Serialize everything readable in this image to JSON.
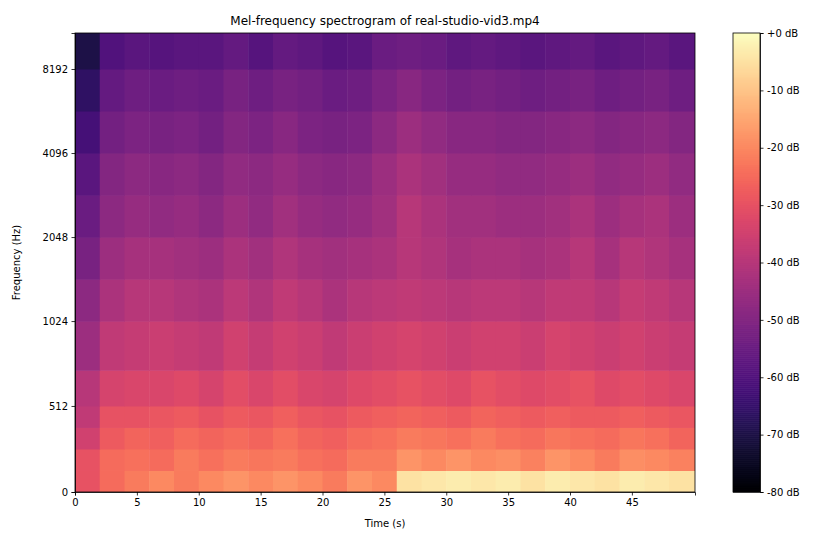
{
  "chart_data": {
    "type": "heatmap",
    "title": "Mel-frequency spectrogram of real-studio-vid3.mp4",
    "x_label": "Time (s)",
    "y_label": "Frequency (Hz)",
    "xlim": [
      0,
      50.1
    ],
    "xticks": [
      0,
      5,
      10,
      15,
      20,
      25,
      30,
      35,
      40,
      45
    ],
    "ylim": [
      0,
      11025
    ],
    "yticks": [
      0,
      512,
      1024,
      2048,
      4096,
      8192
    ],
    "x_bins": [
      0,
      2,
      4,
      6,
      8,
      10,
      12,
      14,
      16,
      18,
      20,
      22,
      24,
      26,
      28,
      30,
      32,
      34,
      36,
      38,
      40,
      42,
      44,
      46,
      48,
      50.1
    ],
    "y_bins": [
      0,
      128,
      256,
      384,
      512,
      724,
      1024,
      1448,
      2048,
      2896,
      4096,
      5793,
      8192,
      11025
    ],
    "cells": [
      [
        -30,
        -25,
        -22,
        -20,
        -22,
        -20,
        -18,
        -20,
        -18,
        -20,
        -22,
        -18,
        -20,
        -5,
        -4,
        -3,
        -4,
        -3,
        -5,
        -3,
        -4,
        -5,
        -3,
        -4,
        -5
      ],
      [
        -30,
        -25,
        -24,
        -25,
        -22,
        -24,
        -22,
        -23,
        -22,
        -24,
        -25,
        -22,
        -22,
        -18,
        -20,
        -18,
        -20,
        -19,
        -21,
        -18,
        -20,
        -22,
        -19,
        -20,
        -21
      ],
      [
        -35,
        -28,
        -26,
        -27,
        -25,
        -26,
        -25,
        -26,
        -24,
        -26,
        -27,
        -25,
        -24,
        -22,
        -23,
        -24,
        -22,
        -24,
        -25,
        -23,
        -24,
        -25,
        -23,
        -24,
        -26
      ],
      [
        -38,
        -30,
        -30,
        -29,
        -28,
        -30,
        -28,
        -29,
        -27,
        -29,
        -30,
        -28,
        -27,
        -26,
        -27,
        -28,
        -26,
        -27,
        -28,
        -27,
        -28,
        -28,
        -27,
        -28,
        -29
      ],
      [
        -40,
        -34,
        -33,
        -33,
        -32,
        -34,
        -31,
        -33,
        -31,
        -33,
        -34,
        -32,
        -31,
        -30,
        -31,
        -32,
        -30,
        -31,
        -32,
        -31,
        -30,
        -32,
        -31,
        -32,
        -33
      ],
      [
        -45,
        -38,
        -37,
        -36,
        -37,
        -38,
        -35,
        -37,
        -35,
        -36,
        -38,
        -36,
        -35,
        -34,
        -35,
        -36,
        -35,
        -35,
        -36,
        -34,
        -35,
        -36,
        -35,
        -36,
        -37
      ],
      [
        -48,
        -42,
        -40,
        -40,
        -41,
        -42,
        -39,
        -41,
        -38,
        -40,
        -42,
        -40,
        -39,
        -38,
        -39,
        -40,
        -39,
        -39,
        -40,
        -38,
        -38,
        -40,
        -37,
        -38,
        -40
      ],
      [
        -52,
        -45,
        -43,
        -43,
        -44,
        -45,
        -42,
        -44,
        -41,
        -43,
        -44,
        -43,
        -42,
        -40,
        -41,
        -43,
        -42,
        -42,
        -43,
        -42,
        -40,
        -43,
        -40,
        -41,
        -43
      ],
      [
        -55,
        -48,
        -46,
        -47,
        -46,
        -48,
        -45,
        -47,
        -44,
        -46,
        -47,
        -46,
        -44,
        -40,
        -42,
        -44,
        -44,
        -45,
        -45,
        -44,
        -42,
        -45,
        -43,
        -42,
        -45
      ],
      [
        -58,
        -50,
        -48,
        -49,
        -48,
        -50,
        -47,
        -48,
        -46,
        -48,
        -49,
        -48,
        -45,
        -42,
        -44,
        -46,
        -46,
        -47,
        -47,
        -46,
        -45,
        -47,
        -46,
        -45,
        -47
      ],
      [
        -62,
        -53,
        -51,
        -52,
        -51,
        -53,
        -50,
        -51,
        -49,
        -51,
        -52,
        -51,
        -48,
        -45,
        -47,
        -49,
        -49,
        -50,
        -50,
        -49,
        -48,
        -50,
        -49,
        -48,
        -50
      ],
      [
        -66,
        -56,
        -54,
        -55,
        -54,
        -55,
        -52,
        -54,
        -52,
        -53,
        -55,
        -54,
        -51,
        -49,
        -51,
        -53,
        -52,
        -53,
        -54,
        -53,
        -52,
        -54,
        -53,
        -52,
        -54
      ],
      [
        -70,
        -60,
        -58,
        -59,
        -58,
        -58,
        -56,
        -59,
        -56,
        -57,
        -59,
        -58,
        -55,
        -54,
        -55,
        -57,
        -56,
        -57,
        -58,
        -57,
        -56,
        -58,
        -57,
        -56,
        -58
      ]
    ],
    "clim": [
      -80,
      0
    ],
    "cticks": [
      {
        "value": 0,
        "label": "+0 dB"
      },
      {
        "value": -10,
        "label": "-10 dB"
      },
      {
        "value": -20,
        "label": "-20 dB"
      },
      {
        "value": -30,
        "label": "-30 dB"
      },
      {
        "value": -40,
        "label": "-40 dB"
      },
      {
        "value": -50,
        "label": "-50 dB"
      },
      {
        "value": -60,
        "label": "-60 dB"
      },
      {
        "value": -70,
        "label": "-70 dB"
      },
      {
        "value": -80,
        "label": "-80 dB"
      }
    ]
  }
}
